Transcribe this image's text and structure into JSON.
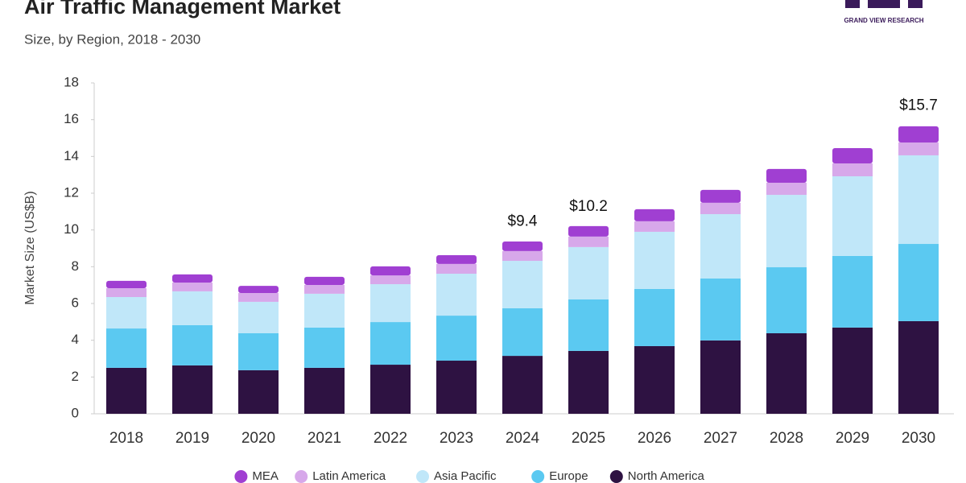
{
  "chart_data": {
    "type": "stacked_bar",
    "title": "Air Traffic Management Market",
    "subtitle": "Size, by Region, 2018 - 2030",
    "brand": "GRAND VIEW RESEARCH",
    "y_label": "Market Size (US$B)",
    "categories": [
      "2018",
      "2019",
      "2020",
      "2021",
      "2022",
      "2023",
      "2024",
      "2025",
      "2026",
      "2027",
      "2028",
      "2029",
      "2030"
    ],
    "series": [
      {
        "name": "MEA",
        "color": "#a03fd2",
        "values": [
          0.4,
          0.44,
          0.39,
          0.44,
          0.49,
          0.48,
          0.52,
          0.57,
          0.66,
          0.7,
          0.75,
          0.83,
          0.88
        ]
      },
      {
        "name": "Latin America",
        "color": "#d7a8ea",
        "values": [
          0.48,
          0.48,
          0.48,
          0.48,
          0.48,
          0.53,
          0.53,
          0.57,
          0.57,
          0.62,
          0.66,
          0.7,
          0.7
        ]
      },
      {
        "name": "Asia Pacific",
        "color": "#c0e7f9",
        "values": [
          1.71,
          1.84,
          1.71,
          1.84,
          2.06,
          2.28,
          2.58,
          2.85,
          3.11,
          3.5,
          3.94,
          4.33,
          4.82
        ]
      },
      {
        "name": "Europe",
        "color": "#5bc9f1",
        "values": [
          2.14,
          2.19,
          2.01,
          2.19,
          2.32,
          2.45,
          2.59,
          2.8,
          3.11,
          3.37,
          3.59,
          3.9,
          4.2
        ]
      },
      {
        "name": "North America",
        "color": "#2e1242",
        "values": [
          2.5,
          2.63,
          2.37,
          2.5,
          2.67,
          2.89,
          3.15,
          3.42,
          3.68,
          3.99,
          4.38,
          4.69,
          5.04
        ]
      }
    ],
    "totals": [
      null,
      null,
      null,
      null,
      null,
      null,
      9.4,
      10.2,
      null,
      null,
      null,
      null,
      15.7
    ],
    "total_labels": [
      null,
      null,
      null,
      null,
      null,
      null,
      "$9.4",
      "$10.2",
      null,
      null,
      null,
      null,
      "$15.7"
    ],
    "ylim": [
      0,
      18
    ],
    "yticks": [
      0,
      2,
      4,
      6,
      8,
      10,
      12,
      14,
      16,
      18
    ],
    "grid": false
  }
}
